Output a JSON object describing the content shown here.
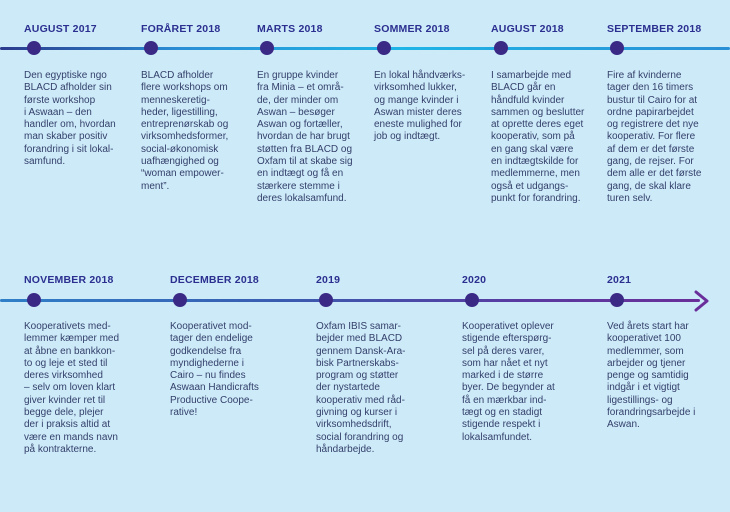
{
  "timeline_top": [
    {
      "date": "AUGUST 2017",
      "text": "Den egyptiske ngo\nBLACD afholder sin\nførste workshop\ni Aswaan – den\nhandler om, hvordan\nman skaber positiv\nforandring i sit lokal-\nsamfund."
    },
    {
      "date": "FORÅRET 2018",
      "text": "BLACD afholder\nflere workshops om\nmenneskeretig-\nheder, ligestilling,\nentreprenørskab og\nvirksomhedsformer,\nsocial-økonomisk\nuafhængighed og\n“woman empower-\nment”."
    },
    {
      "date": "MARTS 2018",
      "text": "En gruppe kvinder\nfra Minia – et områ-\nde, der minder om\nAswan – besøger\nAswan og fortæller,\nhvordan de har brugt\nstøtten fra BLACD og\nOxfam til at skabe sig\nen indtægt og få en\nstærkere stemme i\nderes lokalsamfund."
    },
    {
      "date": "SOMMER 2018",
      "text": "En lokal håndværks-\nvirksomhed lukker,\nog mange kvinder i\nAswan mister deres\neneste mulighed for\njob og indtægt."
    },
    {
      "date": "AUGUST 2018",
      "text": "I samarbejde med\nBLACD går en\nhåndfuld kvinder\nsammen og beslutter\nat oprette deres eget\nkooperativ, som på\nen gang skal være\nen indtægtskilde for\nmedlemmerne, men\nogså et udgangs-\npunkt for forandring."
    },
    {
      "date": "SEPTEMBER 2018",
      "text": "Fire af kvinderne\ntager den 16 timers\nbustur til Cairo for at\nordne papirarbejdet\nog registrere det nye\nkooperativ. For flere\naf dem er det første\ngang, de rejser. For\ndem alle er det første\ngang, de skal klare\nturen selv."
    }
  ],
  "timeline_bottom": [
    {
      "date": "NOVEMBER 2018",
      "text": "Kooperativets med-\nlemmer kæmper med\nat åbne en bankkon-\nto og leje et sted til\nderes virksomhed\n– selv om loven klart\ngiver kvinder ret til\nbegge dele, plejer\nder i praksis altid at\nvære en mands navn\npå kontrakterne."
    },
    {
      "date": "DECEMBER 2018",
      "text": "Kooperativet mod-\ntager den endelige\ngodkendelse fra\nmyndighederne i\nCairo – nu findes\nAswaan Handicrafts\nProductive Coope-\nrative!"
    },
    {
      "date": "2019",
      "text": "Oxfam IBIS samar-\nbejder med BLACD\ngennem Dansk-Ara-\nbisk Partnerskabs-\nprogram og støtter\nder nystartede\nkooperativ med råd-\ngivning og kurser i\nvirksomhedsdrift,\nsocial forandring og\nhåndarbejde."
    },
    {
      "date": "2020",
      "text": "Kooperativet oplever\nstigende efterspørg-\nsel på deres varer,\nsom har nået et nyt\nmarked i de større\nbyer. De begynder at\nfå en mærkbar ind-\ntægt og en stadigt\nstigende respekt i\nlokalsamfundet."
    },
    {
      "date": "2021",
      "text": "Ved årets start har\nkooperativet 100\nmedlemmer, som\narbejder og tjener\npenge og samtidig\nindgår i et vigtigt\nligestillings- og\nforandringsarbejde i\nAswan."
    }
  ]
}
